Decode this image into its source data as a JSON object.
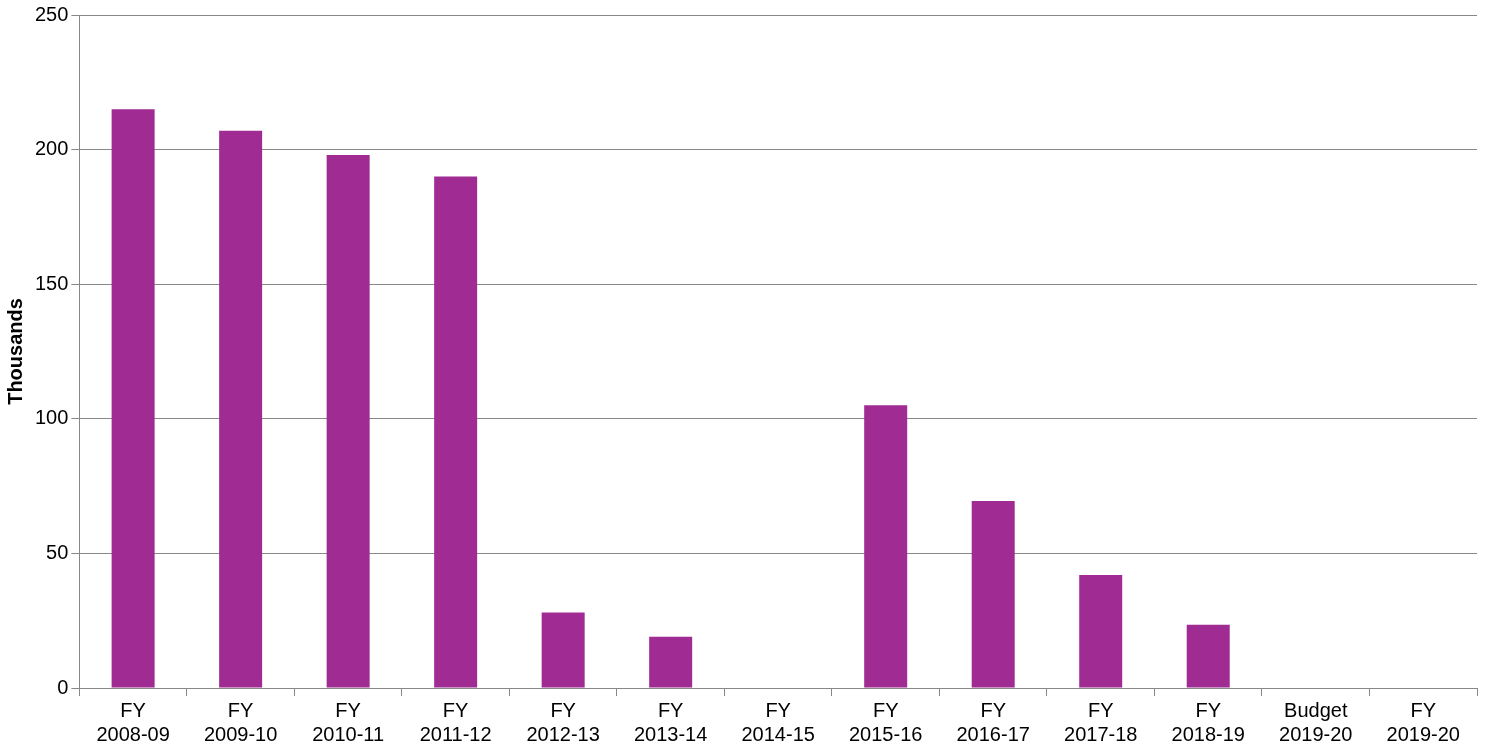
{
  "chart_data": {
    "type": "bar",
    "ylabel": "Thousands",
    "categories": [
      "FY 2008-09",
      "FY 2009-10",
      "FY 2010-11",
      "FY 2011-12",
      "FY 2012-13",
      "FY 2013-14",
      "FY 2014-15",
      "FY 2015-16",
      "FY 2016-17",
      "FY 2017-18",
      "FY 2018-19",
      "Budget 2019-20",
      "FY 2019-20"
    ],
    "values": [
      215,
      207,
      198,
      190,
      28,
      19,
      null,
      105,
      69.5,
      42,
      23.5,
      null,
      null
    ],
    "color": "#a02b93",
    "ylim": [
      0,
      250
    ],
    "yticks": [
      0,
      50,
      100,
      150,
      200,
      250
    ],
    "grid": "y",
    "legend": false
  }
}
